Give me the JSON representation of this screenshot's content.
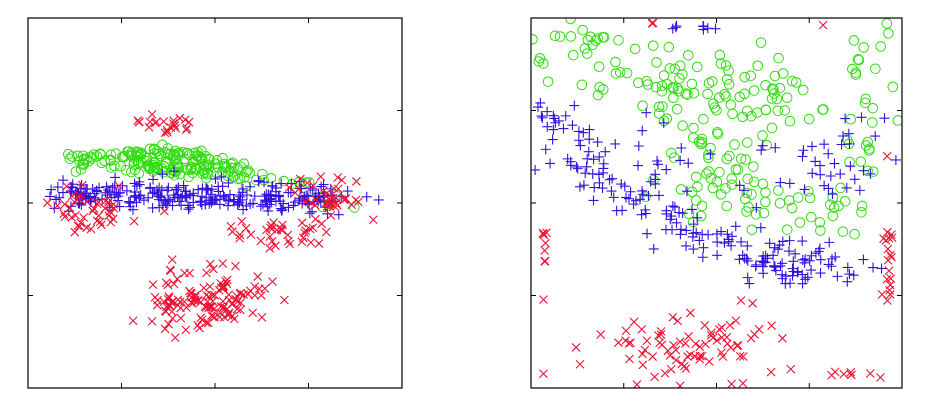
{
  "colors": {
    "green": "#33dd11",
    "blue": "#3311dd",
    "red": "#ee1133"
  },
  "chart_data": [
    {
      "type": "scatter",
      "title": "",
      "xlabel": "",
      "ylabel": "",
      "xlim": [
        0,
        4
      ],
      "ylim": [
        0,
        4
      ],
      "grid": false,
      "ticks_labeled": false,
      "series": [
        {
          "marker": "circle",
          "color": "#33dd11",
          "clusters": [
            {
              "n": 170,
              "shape": "triangle",
              "apex": [
                1.45,
                2.65
              ],
              "base_left": [
                0.35,
                2.4
              ],
              "base_right": [
                3.05,
                2.2
              ],
              "spread": 0.03,
              "seed": 11
            },
            {
              "n": 14,
              "shape": "line",
              "from": [
                0.45,
                2.5
              ],
              "to": [
                1.05,
                2.55
              ],
              "spread": 0.04,
              "seed": 12
            },
            {
              "n": 10,
              "shape": "line",
              "from": [
                2.85,
                2.2
              ],
              "to": [
                3.4,
                1.9
              ],
              "spread": 0.05,
              "seed": 13
            }
          ]
        },
        {
          "marker": "plus",
          "color": "#3311dd",
          "clusters": [
            {
              "n": 260,
              "shape": "line",
              "from": [
                0.3,
                2.1
              ],
              "to": [
                3.3,
                2.05
              ],
              "spread": 0.08,
              "seed": 21
            },
            {
              "n": 18,
              "shape": "line",
              "from": [
                0.2,
                2.15
              ],
              "to": [
                3.9,
                2.05
              ],
              "spread": 0.05,
              "seed": 22
            }
          ]
        },
        {
          "marker": "cross",
          "color": "#ee1133",
          "clusters": [
            {
              "n": 22,
              "shape": "blob",
              "center": [
                1.4,
                2.85
              ],
              "rx": 0.2,
              "ry": 0.05,
              "seed": 31
            },
            {
              "n": 45,
              "shape": "blob",
              "center": [
                0.65,
                1.95
              ],
              "rx": 0.3,
              "ry": 0.12,
              "seed": 32
            },
            {
              "n": 35,
              "shape": "blob",
              "center": [
                2.65,
                1.65
              ],
              "rx": 0.25,
              "ry": 0.08,
              "seed": 33
            },
            {
              "n": 130,
              "shape": "blob",
              "center": [
                1.9,
                0.95
              ],
              "rx": 0.35,
              "ry": 0.17,
              "seed": 34
            },
            {
              "n": 40,
              "shape": "blob",
              "center": [
                3.25,
                2.05
              ],
              "rx": 0.22,
              "ry": 0.15,
              "seed": 35
            }
          ]
        }
      ]
    },
    {
      "type": "scatter",
      "title": "",
      "xlabel": "",
      "ylabel": "",
      "xlim": [
        0,
        4
      ],
      "ylim": [
        0,
        4
      ],
      "grid": false,
      "ticks_labeled": false,
      "series": [
        {
          "marker": "circle",
          "color": "#33dd11",
          "clusters": [
            {
              "n": 40,
              "shape": "blob",
              "center": [
                0.7,
                3.55
              ],
              "rx": 0.6,
              "ry": 0.25,
              "seed": 41
            },
            {
              "n": 45,
              "shape": "blob",
              "center": [
                1.55,
                3.3
              ],
              "rx": 0.4,
              "ry": 0.2,
              "seed": 42
            },
            {
              "n": 40,
              "shape": "blob",
              "center": [
                2.4,
                3.15
              ],
              "rx": 0.35,
              "ry": 0.25,
              "seed": 43
            },
            {
              "n": 50,
              "shape": "blob",
              "center": [
                2.0,
                2.3
              ],
              "rx": 0.3,
              "ry": 0.35,
              "seed": 44
            },
            {
              "n": 30,
              "shape": "blob",
              "center": [
                2.85,
                1.95
              ],
              "rx": 0.4,
              "ry": 0.15,
              "seed": 45
            },
            {
              "n": 25,
              "shape": "blob",
              "center": [
                3.6,
                3.1
              ],
              "rx": 0.12,
              "ry": 0.4,
              "seed": 46
            },
            {
              "n": 3,
              "shape": "blob",
              "center": [
                3.85,
                3.85
              ],
              "rx": 0.05,
              "ry": 0.05,
              "seed": 47
            }
          ]
        },
        {
          "marker": "plus",
          "color": "#3311dd",
          "clusters": [
            {
              "n": 8,
              "shape": "line",
              "from": [
                1.35,
                3.9
              ],
              "to": [
                2.05,
                3.9
              ],
              "spread": 0.02,
              "seed": 51
            },
            {
              "n": 130,
              "shape": "curve",
              "points": [
                [
                  0.15,
                  3.0
                ],
                [
                  0.5,
                  2.45
                ],
                [
                  0.95,
                  2.05
                ],
                [
                  1.4,
                  1.85
                ],
                [
                  1.85,
                  1.65
                ],
                [
                  2.3,
                  1.45
                ],
                [
                  2.75,
                  1.35
                ],
                [
                  3.2,
                  1.35
                ]
              ],
              "spread": 0.12,
              "seed": 52
            },
            {
              "n": 35,
              "shape": "line",
              "from": [
                1.5,
                2.55
              ],
              "to": [
                0.25,
                2.45
              ],
              "spread": 0.25,
              "seed": 53
            },
            {
              "n": 40,
              "shape": "blob",
              "center": [
                3.15,
                2.5
              ],
              "rx": 0.4,
              "ry": 0.3,
              "seed": 54
            },
            {
              "n": 40,
              "shape": "blob",
              "center": [
                2.95,
                1.3
              ],
              "rx": 0.4,
              "ry": 0.12,
              "seed": 55
            }
          ]
        },
        {
          "marker": "cross",
          "color": "#ee1133",
          "clusters": [
            {
              "n": 8,
              "shape": "line",
              "from": [
                0.15,
                1.75
              ],
              "to": [
                0.15,
                1.35
              ],
              "spread": 0.02,
              "seed": 61
            },
            {
              "n": 18,
              "shape": "line",
              "from": [
                3.85,
                1.7
              ],
              "to": [
                3.85,
                0.95
              ],
              "spread": 0.03,
              "seed": 62
            },
            {
              "n": 7,
              "shape": "line",
              "from": [
                3.2,
                0.15
              ],
              "to": [
                3.85,
                0.15
              ],
              "spread": 0.02,
              "seed": 63
            },
            {
              "n": 80,
              "shape": "blob",
              "center": [
                1.75,
                0.45
              ],
              "rx": 0.5,
              "ry": 0.2,
              "seed": 64
            },
            {
              "n": 2,
              "shape": "line",
              "from": [
                1.3,
                3.95
              ],
              "to": [
                1.35,
                3.95
              ],
              "spread": 0.01,
              "seed": 65
            },
            {
              "n": 1,
              "shape": "blob",
              "center": [
                3.15,
                3.9
              ],
              "rx": 0.01,
              "ry": 0.01,
              "seed": 66
            },
            {
              "n": 1,
              "shape": "blob",
              "center": [
                3.85,
                2.5
              ],
              "rx": 0.01,
              "ry": 0.01,
              "seed": 67
            },
            {
              "n": 1,
              "shape": "blob",
              "center": [
                0.15,
                0.95
              ],
              "rx": 0.01,
              "ry": 0.01,
              "seed": 68
            },
            {
              "n": 1,
              "shape": "blob",
              "center": [
                0.15,
                0.15
              ],
              "rx": 0.01,
              "ry": 0.01,
              "seed": 69
            }
          ]
        }
      ]
    }
  ]
}
